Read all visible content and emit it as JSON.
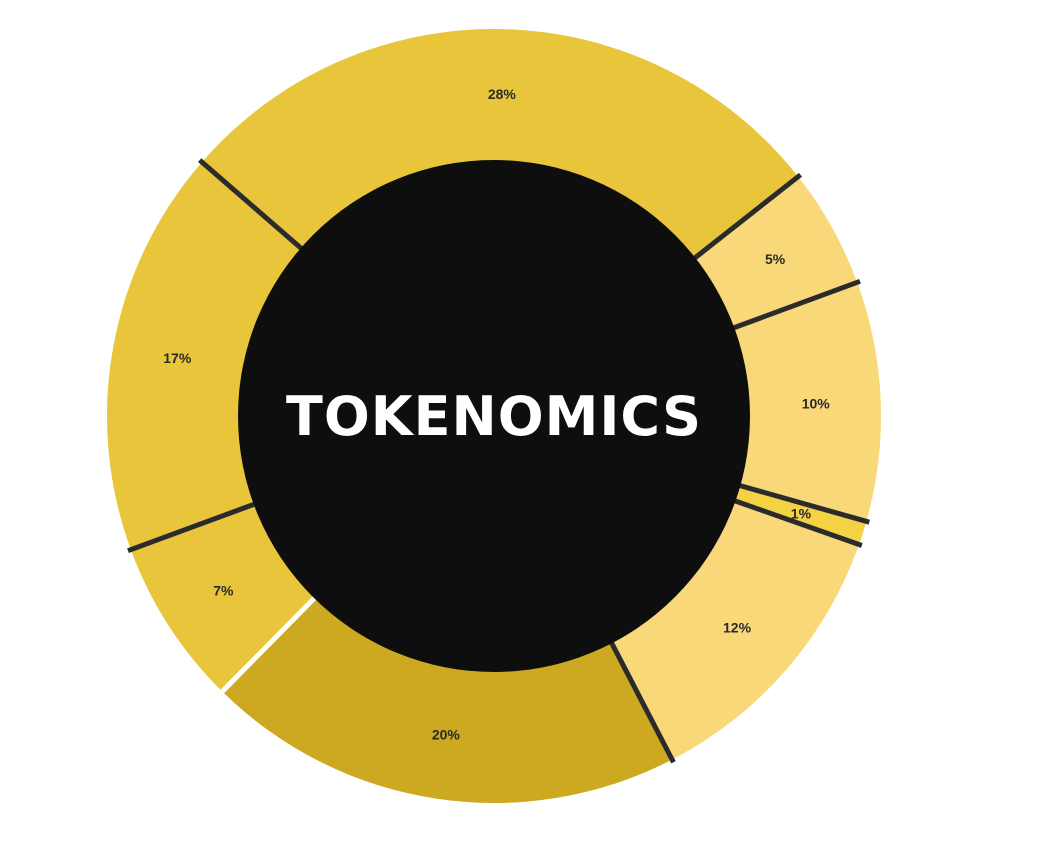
{
  "title": "TOKENOMICS",
  "chart_data": {
    "type": "pie",
    "title": "TOKENOMICS",
    "slices": [
      {
        "label": "28%",
        "value": 28,
        "color": "#e8c53b"
      },
      {
        "label": "5%",
        "value": 5,
        "color": "#f9d87a"
      },
      {
        "label": "10%",
        "value": 10,
        "color": "#f9d87a"
      },
      {
        "label": "1%",
        "value": 1,
        "color": "#f3d244"
      },
      {
        "label": "12%",
        "value": 12,
        "color": "#f9d87a"
      },
      {
        "label": "20%",
        "value": 20,
        "color": "#cca920"
      },
      {
        "label": "7%",
        "value": 7,
        "color": "#e8c53b"
      },
      {
        "label": "17%",
        "value": 17,
        "color": "#e8c53b"
      }
    ],
    "center_color": "#0e0e0e",
    "separator_color": "#2b2b2b"
  }
}
